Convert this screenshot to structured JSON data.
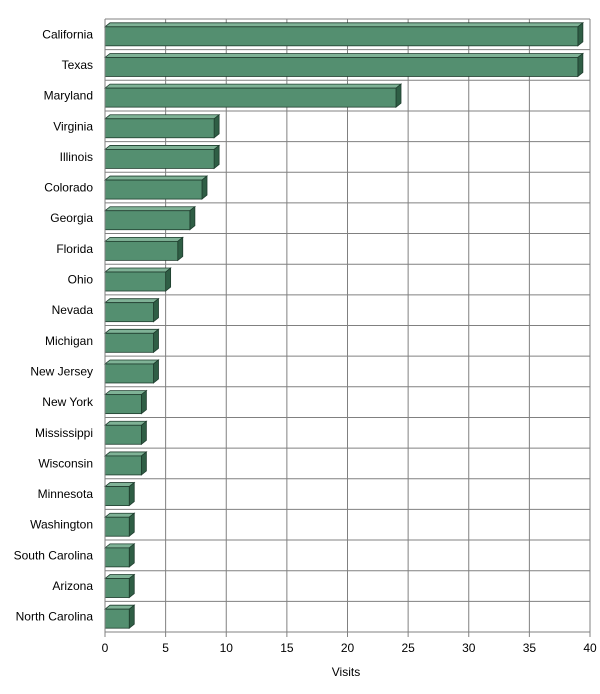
{
  "chart_data": {
    "type": "bar",
    "orientation": "horizontal",
    "title": "",
    "xlabel": "Visits",
    "ylabel": "",
    "xlim": [
      0,
      40
    ],
    "xticks": [
      0,
      5,
      10,
      15,
      20,
      25,
      30,
      35,
      40
    ],
    "grid": true,
    "bar_style": "3d",
    "colors": {
      "bar": "#548f70",
      "bar_top": "#7fb296",
      "bar_side": "#2f5e45",
      "grid": "#808080"
    },
    "categories": [
      "California",
      "Texas",
      "Maryland",
      "Virginia",
      "Illinois",
      "Colorado",
      "Georgia",
      "Florida",
      "Ohio",
      "Nevada",
      "Michigan",
      "New Jersey",
      "New York",
      "Mississippi",
      "Wisconsin",
      "Minnesota",
      "Washington",
      "South Carolina",
      "Arizona",
      "North Carolina"
    ],
    "values": [
      39,
      39,
      24,
      9,
      9,
      8,
      7,
      6,
      5,
      4,
      4,
      4,
      3,
      3,
      3,
      2,
      2,
      2,
      2,
      2
    ]
  }
}
